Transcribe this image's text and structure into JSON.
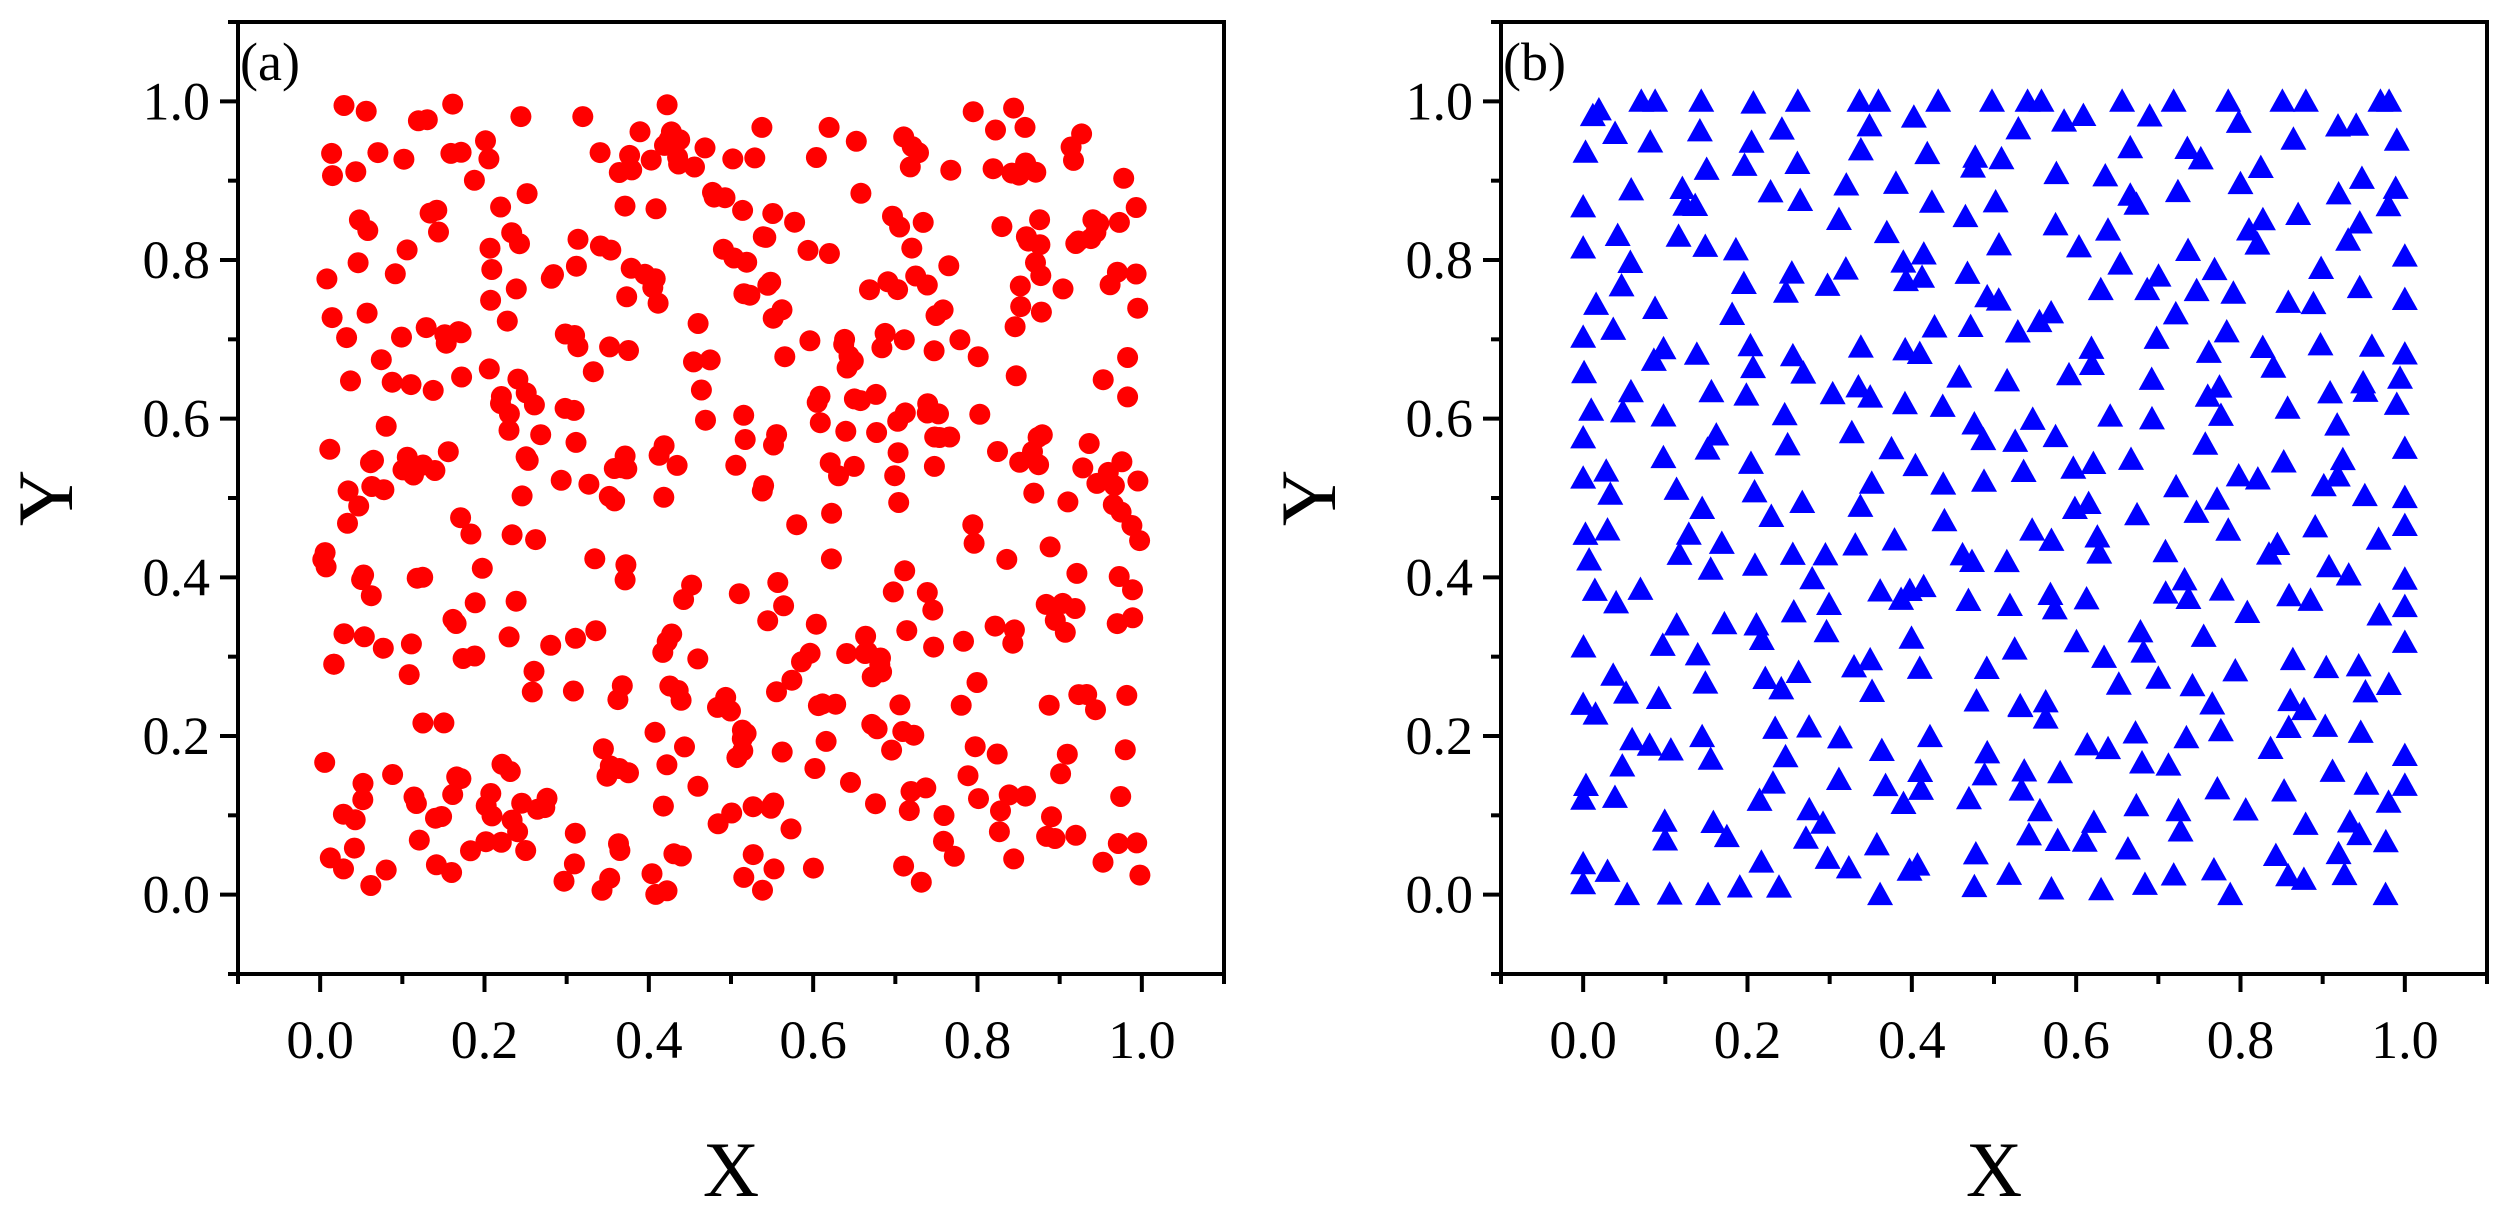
{
  "chart_data": [
    {
      "panel_label": "(a)",
      "type": "scatter",
      "xlabel": "X",
      "ylabel": "Y",
      "xlim": [
        -0.1,
        1.1
      ],
      "ylim": [
        -0.1,
        1.1
      ],
      "xticks": [
        "0.0",
        "0.2",
        "0.4",
        "0.6",
        "0.8",
        "1.0"
      ],
      "yticks": [
        "0.0",
        "0.2",
        "0.4",
        "0.6",
        "0.8",
        "1.0"
      ],
      "grid": false,
      "legend": "none",
      "marker": "circle",
      "color": "#ff0000",
      "point_count": 500,
      "distribution": "random uniform",
      "random_seed": 17
    },
    {
      "panel_label": "(b)",
      "type": "scatter",
      "xlabel": "X",
      "ylabel": "Y",
      "xlim": [
        -0.1,
        1.1
      ],
      "ylim": [
        -0.1,
        1.1
      ],
      "xticks": [
        "0.0",
        "0.2",
        "0.4",
        "0.6",
        "0.8",
        "1.0"
      ],
      "yticks": [
        "0.0",
        "0.2",
        "0.4",
        "0.6",
        "0.8",
        "1.0"
      ],
      "grid": false,
      "legend": "none",
      "marker": "triangle",
      "color": "#0000ff",
      "grid_columns": 20,
      "grid_rows": 21,
      "jitter": 0.025,
      "random_seed": 91
    }
  ]
}
